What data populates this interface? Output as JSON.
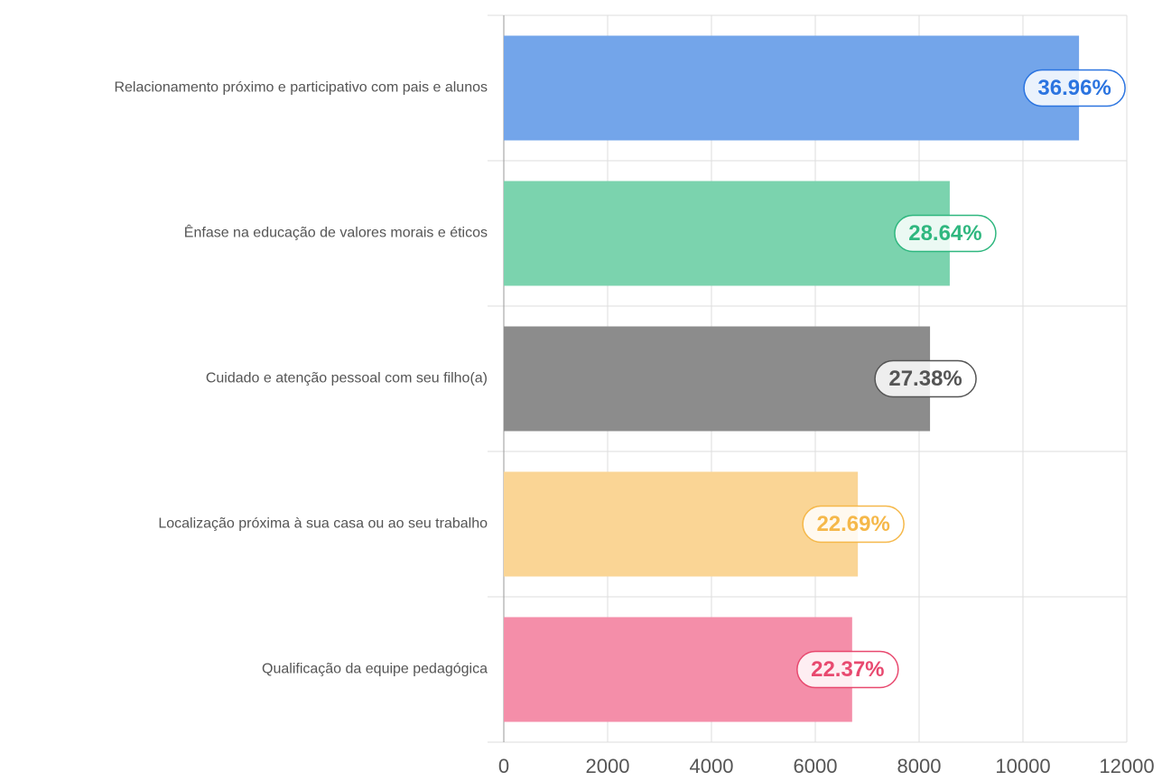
{
  "chart_data": {
    "type": "bar",
    "orientation": "horizontal",
    "categories": [
      "Relacionamento próximo e participativo com pais e alunos",
      "Ênfase na educação de valores morais e éticos",
      "Cuidado e atenção pessoal com seu filho(a)",
      "Localização próxima à sua casa ou ao seu trabalho",
      "Qualificação da equipe pedagógica"
    ],
    "values": [
      11080,
      8590,
      8210,
      6820,
      6710
    ],
    "data_labels": [
      "36.96%",
      "28.64%",
      "27.38%",
      "22.69%",
      "22.37%"
    ],
    "colors": [
      "#73a5ea",
      "#7bd3ae",
      "#8c8c8c",
      "#fad595",
      "#f48ea9"
    ],
    "label_colors": [
      "#2b74e0",
      "#2fb77f",
      "#555555",
      "#f5b84a",
      "#e8496f"
    ],
    "xlim": [
      0,
      12000
    ],
    "xticks": [
      0,
      2000,
      4000,
      6000,
      8000,
      10000,
      12000
    ],
    "grid": true
  }
}
